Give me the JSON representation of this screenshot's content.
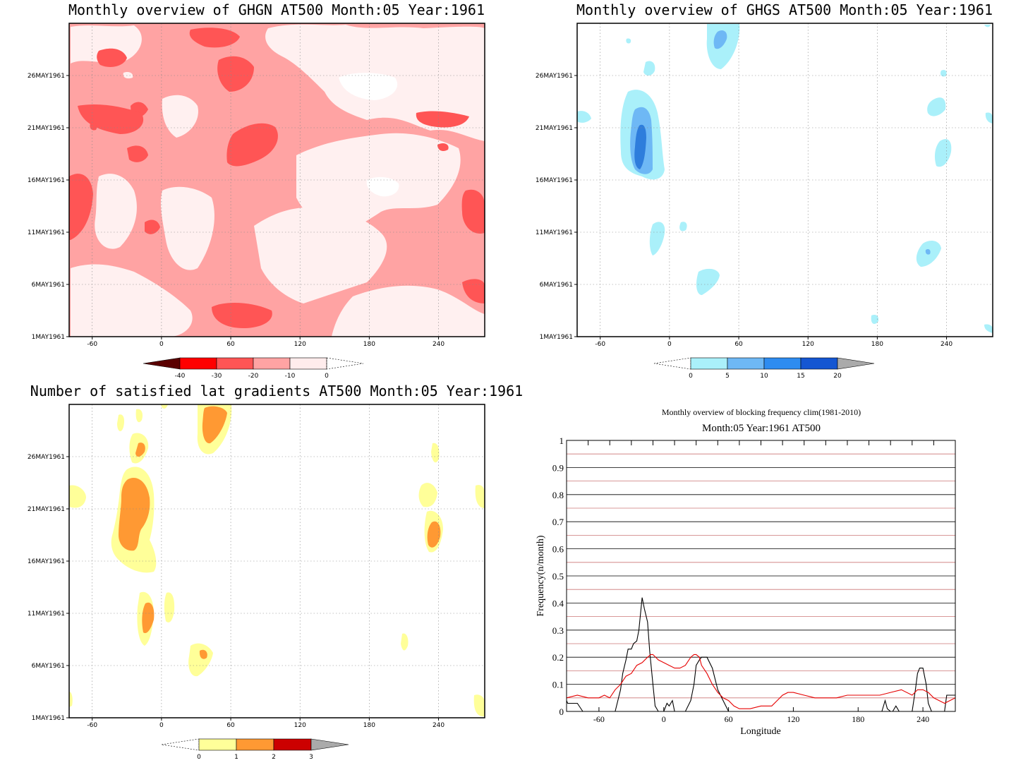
{
  "chart_data": [
    {
      "type": "heatmap",
      "title": "Monthly overview of GHGN AT500 Month:05 Year:1961",
      "x_ticks": [
        "-60",
        "0",
        "60",
        "120",
        "180",
        "240"
      ],
      "x_tick_values": [
        -60,
        0,
        60,
        120,
        180,
        240
      ],
      "xlim": [
        -80,
        280
      ],
      "y_ticks": [
        "1MAY1961",
        "6MAY1961",
        "11MAY1961",
        "16MAY1961",
        "21MAY1961",
        "26MAY1961"
      ],
      "y_tick_values": [
        1,
        6,
        11,
        16,
        21,
        26
      ],
      "ylim": [
        1,
        31
      ],
      "grid": true,
      "colorbar": {
        "labels": [
          "-40",
          "-30",
          "-20",
          "-10",
          "0"
        ],
        "colors": [
          "#5a0000",
          "#ff0000",
          "#ff5555",
          "#ffa3a3",
          "#ffecec"
        ],
        "open_end": "right",
        "placement": "bottom"
      },
      "shading": {
        "background": "#ffa3a3",
        "light": "#fff0f0",
        "dark": "#ff5555",
        "lightest": "#ffffff"
      }
    },
    {
      "type": "heatmap",
      "title": "Monthly overview of GHGS AT500 Month:05 Year:1961",
      "x_ticks": [
        "-60",
        "0",
        "60",
        "120",
        "180",
        "240"
      ],
      "x_tick_values": [
        -60,
        0,
        60,
        120,
        180,
        240
      ],
      "xlim": [
        -80,
        280
      ],
      "y_ticks": [
        "1MAY1961",
        "6MAY1961",
        "11MAY1961",
        "16MAY1961",
        "21MAY1961",
        "26MAY1961"
      ],
      "y_tick_values": [
        1,
        6,
        11,
        16,
        21,
        26
      ],
      "ylim": [
        1,
        31
      ],
      "grid": true,
      "colorbar": {
        "labels": [
          "0",
          "5",
          "10",
          "15",
          "20"
        ],
        "colors": [
          "#aaf0fa",
          "#6eb8f5",
          "#2e8cf0",
          "#1456d2",
          "#aaaaaa"
        ],
        "open_end": "left",
        "placement": "bottom"
      },
      "shading": {
        "c1": "#aaf0fa",
        "c2": "#6eb8f5",
        "c3": "#2e7ddc"
      }
    },
    {
      "type": "heatmap",
      "title": "Number of satisfied lat gradients AT500 Month:05 Year:1961",
      "x_ticks": [
        "-60",
        "0",
        "60",
        "120",
        "180",
        "240"
      ],
      "x_tick_values": [
        -60,
        0,
        60,
        120,
        180,
        240
      ],
      "xlim": [
        -80,
        280
      ],
      "y_ticks": [
        "1MAY1961",
        "6MAY1961",
        "11MAY1961",
        "16MAY1961",
        "21MAY1961",
        "26MAY1961"
      ],
      "y_tick_values": [
        1,
        6,
        11,
        16,
        21,
        26
      ],
      "ylim": [
        1,
        31
      ],
      "grid": true,
      "colorbar": {
        "labels": [
          "0",
          "1",
          "2",
          "3"
        ],
        "colors": [
          "#ffff99",
          "#ff9933",
          "#cc0000",
          "#aaaaaa"
        ],
        "open_end": "left",
        "placement": "bottom"
      },
      "shading": {
        "c1": "#ffff99",
        "c2": "#ff9933"
      }
    },
    {
      "type": "line",
      "title": "Monthly overview of blocking frequency clim(1981-2010)",
      "subtitle": "Month:05 Year:1961  AT500",
      "xlabel": "Longitude",
      "ylabel": "Frequency(n/month)",
      "xlim": [
        -90,
        270
      ],
      "ylim": [
        0,
        1
      ],
      "x_ticks": [
        "-60",
        "0",
        "60",
        "120",
        "180",
        "240"
      ],
      "x_tick_values": [
        -60,
        0,
        60,
        120,
        180,
        240
      ],
      "y_ticks": [
        "0",
        "0.1",
        "0.2",
        "0.3",
        "0.4",
        "0.5",
        "0.6",
        "0.7",
        "0.8",
        "0.9",
        "1"
      ],
      "y_tick_values": [
        0,
        0.1,
        0.2,
        0.3,
        0.4,
        0.5,
        0.6,
        0.7,
        0.8,
        0.9,
        1
      ],
      "grid": true,
      "series": [
        {
          "color": "#000000",
          "x": [
            -90,
            -89,
            -80,
            -75,
            -70,
            -60,
            -50,
            -45,
            -40,
            -38,
            -35,
            -33,
            -30,
            -28,
            -25,
            -23,
            -20,
            -18,
            -15,
            -13,
            -10,
            -8,
            -5,
            -2,
            0,
            3,
            5,
            8,
            10,
            15,
            20,
            25,
            28,
            30,
            33,
            35,
            40,
            45,
            50,
            55,
            60,
            62,
            65,
            200,
            202,
            205,
            207,
            210,
            212,
            215,
            218,
            220,
            225,
            230,
            233,
            235,
            237,
            240,
            243,
            245,
            248,
            250,
            255,
            260,
            262,
            265,
            270
          ],
          "values": [
            0.04,
            0.03,
            0.03,
            0.0,
            0.0,
            0.0,
            0.0,
            0.0,
            0.08,
            0.14,
            0.19,
            0.23,
            0.23,
            0.25,
            0.26,
            0.3,
            0.42,
            0.38,
            0.33,
            0.22,
            0.1,
            0.02,
            0.0,
            0.0,
            0.0,
            0.03,
            0.02,
            0.04,
            0.0,
            0.0,
            0.0,
            0.04,
            0.1,
            0.17,
            0.19,
            0.2,
            0.2,
            0.16,
            0.08,
            0.04,
            0.0,
            0.0,
            0.0,
            0.0,
            0.0,
            0.04,
            0.01,
            0.0,
            0.0,
            0.02,
            0.0,
            0.0,
            0.0,
            0.0,
            0.08,
            0.14,
            0.16,
            0.16,
            0.1,
            0.03,
            0.0,
            0.0,
            0.0,
            0.0,
            0.06,
            0.06,
            0.06
          ]
        },
        {
          "color": "#e60000",
          "x": [
            -90,
            -80,
            -70,
            -60,
            -55,
            -50,
            -45,
            -40,
            -35,
            -30,
            -25,
            -20,
            -15,
            -12,
            -10,
            -5,
            0,
            5,
            10,
            15,
            20,
            25,
            28,
            30,
            33,
            35,
            40,
            45,
            50,
            55,
            60,
            65,
            70,
            80,
            90,
            100,
            105,
            110,
            115,
            120,
            130,
            140,
            150,
            160,
            170,
            180,
            190,
            200,
            210,
            220,
            230,
            235,
            240,
            245,
            250,
            255,
            260,
            265,
            270
          ],
          "values": [
            0.05,
            0.06,
            0.05,
            0.05,
            0.06,
            0.05,
            0.08,
            0.1,
            0.13,
            0.14,
            0.17,
            0.18,
            0.2,
            0.21,
            0.21,
            0.19,
            0.18,
            0.17,
            0.16,
            0.16,
            0.17,
            0.2,
            0.21,
            0.21,
            0.2,
            0.17,
            0.14,
            0.1,
            0.07,
            0.05,
            0.04,
            0.02,
            0.01,
            0.01,
            0.02,
            0.02,
            0.04,
            0.06,
            0.07,
            0.07,
            0.06,
            0.05,
            0.05,
            0.05,
            0.06,
            0.06,
            0.06,
            0.06,
            0.07,
            0.08,
            0.06,
            0.08,
            0.08,
            0.07,
            0.05,
            0.04,
            0.03,
            0.04,
            0.05
          ]
        }
      ]
    }
  ]
}
